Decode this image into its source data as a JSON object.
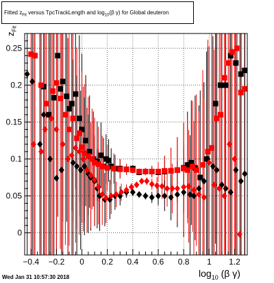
{
  "title": {
    "prefix": "Fitted z",
    "sub1": "Fit",
    "mid": " versus TpcTrackLength and log",
    "sub2": "10",
    "suffix": "(β γ) for Global deuteron"
  },
  "timestamp": "Wed Jan 31 10:57:30 2018",
  "xlabel": {
    "prefix": "log",
    "sub": "10",
    "suffix": "(β γ)"
  },
  "ylabel": {
    "main": "z",
    "sub": "Fit"
  },
  "colors": {
    "black_series": "#000000",
    "red_series": "#ff0000",
    "grid": "#000000"
  },
  "chart_data": {
    "type": "scatter",
    "grid": true,
    "xlim": [
      -0.45,
      1.3
    ],
    "ylim": [
      -0.03,
      0.27
    ],
    "xticks": [
      -0.4,
      -0.2,
      0,
      0.2,
      0.4,
      0.6,
      0.8,
      1,
      1.2
    ],
    "xtick_labels": [
      "−0.4",
      "−0.2",
      "0",
      "0.2",
      "0.4",
      "0.6",
      "0.8",
      "1",
      "1.2"
    ],
    "yticks": [
      0,
      0.05,
      0.1,
      0.15,
      0.2,
      0.25
    ],
    "ytick_labels": [
      "0",
      "0.05",
      "0.1",
      "0.15",
      "0.2",
      "0.25"
    ],
    "series": [
      {
        "color": "black",
        "marker": "square",
        "points": [
          [
            -0.37,
            0.24
          ],
          [
            -0.3,
            0.198
          ],
          [
            -0.26,
            0.16
          ],
          [
            -0.22,
            0.183
          ],
          [
            -0.19,
            0.24
          ],
          [
            -0.17,
            0.195
          ],
          [
            -0.15,
            0.205
          ],
          [
            -0.12,
            0.185
          ],
          [
            -0.1,
            0.168
          ],
          [
            -0.08,
            0.175
          ],
          [
            -0.05,
            0.188
          ],
          [
            -0.02,
            0.155
          ],
          [
            0.0,
            0.14
          ],
          [
            0.03,
            0.125
          ],
          [
            0.06,
            0.11
          ],
          [
            0.09,
            0.1
          ],
          [
            0.12,
            0.097
          ],
          [
            0.15,
            0.105
          ],
          [
            0.17,
            0.09
          ],
          [
            0.19,
            0.1
          ],
          [
            0.21,
            0.098
          ],
          [
            0.23,
            0.09
          ],
          [
            0.26,
            0.087
          ],
          [
            0.3,
            0.087
          ],
          [
            0.35,
            0.086
          ],
          [
            0.4,
            0.087
          ],
          [
            0.45,
            0.082
          ],
          [
            0.5,
            0.083
          ],
          [
            0.55,
            0.083
          ],
          [
            0.6,
            0.082
          ],
          [
            0.65,
            0.083
          ],
          [
            0.7,
            0.084
          ],
          [
            0.75,
            0.085
          ],
          [
            0.8,
            0.088
          ],
          [
            0.83,
            0.092
          ],
          [
            0.86,
            0.095
          ],
          [
            0.89,
            0.088
          ],
          [
            0.93,
            0.075
          ],
          [
            0.98,
            0.1
          ],
          [
            1.02,
            0.115
          ],
          [
            1.05,
            0.175
          ],
          [
            1.09,
            0.2
          ],
          [
            1.13,
            0.2
          ],
          [
            1.17,
            0.24
          ],
          [
            1.21,
            0.23
          ],
          [
            1.25,
            0.215
          ],
          [
            1.28,
            0.22
          ]
        ]
      },
      {
        "color": "red",
        "marker": "square",
        "points": [
          [
            -0.4,
            0.242
          ],
          [
            -0.37,
            0.24
          ],
          [
            -0.32,
            0.2
          ],
          [
            -0.28,
            0.175
          ],
          [
            -0.23,
            0.192
          ],
          [
            -0.2,
            0.203
          ],
          [
            -0.17,
            0.182
          ],
          [
            -0.13,
            0.16
          ],
          [
            -0.1,
            0.14
          ],
          [
            -0.07,
            0.155
          ],
          [
            -0.04,
            0.128
          ],
          [
            -0.02,
            0.135
          ],
          [
            0.0,
            0.116
          ],
          [
            0.02,
            0.108
          ],
          [
            0.05,
            0.104
          ],
          [
            0.08,
            0.1
          ],
          [
            0.1,
            0.095
          ],
          [
            0.13,
            0.093
          ],
          [
            0.16,
            0.09
          ],
          [
            0.2,
            0.088
          ],
          [
            0.25,
            0.087
          ],
          [
            0.3,
            0.086
          ],
          [
            0.35,
            0.086
          ],
          [
            0.4,
            0.085
          ],
          [
            0.45,
            0.083
          ],
          [
            0.5,
            0.083
          ],
          [
            0.55,
            0.083
          ],
          [
            0.6,
            0.083
          ],
          [
            0.65,
            0.084
          ],
          [
            0.7,
            0.084
          ],
          [
            0.75,
            0.085
          ],
          [
            0.8,
            0.087
          ],
          [
            0.83,
            0.085
          ],
          [
            0.87,
            0.09
          ],
          [
            0.9,
            0.085
          ],
          [
            0.95,
            0.092
          ],
          [
            0.99,
            0.11
          ],
          [
            1.02,
            0.115
          ],
          [
            1.06,
            0.155
          ],
          [
            1.09,
            0.16
          ],
          [
            1.12,
            0.21
          ],
          [
            1.15,
            0.23
          ],
          [
            1.18,
            0.245
          ],
          [
            1.22,
            0.25
          ],
          [
            1.25,
            0.19
          ],
          [
            1.28,
            0.195
          ]
        ]
      },
      {
        "color": "black",
        "marker": "diamond",
        "points": [
          [
            -0.43,
            0.215
          ],
          [
            -0.39,
            0.205
          ],
          [
            -0.33,
            0.12
          ],
          [
            -0.3,
            0.16
          ],
          [
            -0.25,
            0.1
          ],
          [
            -0.2,
            0.074
          ],
          [
            -0.16,
            0.085
          ],
          [
            -0.11,
            0.1
          ],
          [
            -0.07,
            0.095
          ],
          [
            -0.04,
            0.09
          ],
          [
            -0.01,
            0.085
          ],
          [
            0.02,
            0.09
          ],
          [
            0.05,
            0.08
          ],
          [
            0.07,
            0.075
          ],
          [
            0.1,
            0.07
          ],
          [
            0.12,
            0.06
          ],
          [
            0.14,
            0.05
          ],
          [
            0.18,
            0.045
          ],
          [
            0.22,
            0.045
          ],
          [
            0.26,
            0.05
          ],
          [
            0.3,
            0.05
          ],
          [
            0.35,
            0.055
          ],
          [
            0.4,
            0.055
          ],
          [
            0.45,
            0.052
          ],
          [
            0.5,
            0.05
          ],
          [
            0.55,
            0.048
          ],
          [
            0.6,
            0.05
          ],
          [
            0.65,
            0.05
          ],
          [
            0.7,
            0.048
          ],
          [
            0.75,
            0.052
          ],
          [
            0.8,
            0.055
          ],
          [
            0.85,
            0.052
          ],
          [
            0.88,
            0.05
          ],
          [
            0.92,
            0.06
          ],
          [
            0.96,
            0.07
          ],
          [
            0.99,
            0.1
          ],
          [
            1.03,
            0.09
          ],
          [
            1.06,
            0.085
          ],
          [
            1.1,
            0.065
          ],
          [
            1.13,
            0.06
          ],
          [
            1.17,
            0.055
          ],
          [
            1.21,
            0.085
          ],
          [
            1.25,
            0.07
          ],
          [
            1.28,
            0.08
          ]
        ]
      },
      {
        "color": "red",
        "marker": "diamond",
        "points": [
          [
            -0.38,
            0.12
          ],
          [
            -0.32,
            0.11
          ],
          [
            -0.29,
            0.14
          ],
          [
            -0.24,
            0.155
          ],
          [
            -0.2,
            0.14
          ],
          [
            -0.15,
            0.12
          ],
          [
            -0.11,
            0.1
          ],
          [
            -0.08,
            0.105
          ],
          [
            -0.05,
            0.115
          ],
          [
            -0.02,
            0.11
          ],
          [
            0.01,
            0.1
          ],
          [
            0.04,
            0.085
          ],
          [
            0.07,
            0.078
          ],
          [
            0.1,
            0.072
          ],
          [
            0.13,
            0.062
          ],
          [
            0.16,
            0.052
          ],
          [
            0.19,
            0.047
          ],
          [
            0.23,
            0.05
          ],
          [
            0.27,
            0.052
          ],
          [
            0.31,
            0.055
          ],
          [
            0.35,
            0.058
          ],
          [
            0.39,
            0.062
          ],
          [
            0.43,
            0.065
          ],
          [
            0.47,
            0.07
          ],
          [
            0.51,
            0.07
          ],
          [
            0.55,
            0.066
          ],
          [
            0.59,
            0.064
          ],
          [
            0.63,
            0.063
          ],
          [
            0.67,
            0.06
          ],
          [
            0.71,
            0.06
          ],
          [
            0.75,
            0.06
          ],
          [
            0.8,
            0.062
          ],
          [
            0.84,
            0.063
          ],
          [
            0.88,
            0.058
          ],
          [
            0.92,
            0.052
          ],
          [
            0.96,
            0.048
          ],
          [
            1.0,
            0.095
          ],
          [
            1.04,
            0.065
          ],
          [
            1.08,
            0.06
          ],
          [
            1.12,
            0.05
          ],
          [
            1.16,
            0.12
          ],
          [
            1.2,
            0.1
          ],
          [
            1.24,
            -0.002
          ]
        ]
      }
    ]
  }
}
